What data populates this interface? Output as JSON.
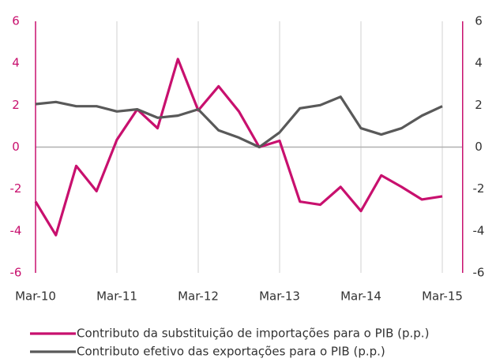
{
  "chart_data": {
    "type": "line",
    "categories": [
      "Mar-10",
      null,
      null,
      null,
      "Mar-11",
      null,
      null,
      null,
      "Mar-12",
      null,
      null,
      null,
      "Mar-13",
      null,
      null,
      null,
      "Mar-14",
      null,
      null,
      null,
      "Mar-15"
    ],
    "series": [
      {
        "name": "Contributo da substituição de importações para o PIB (p.p.)",
        "color": "#c8106e",
        "values": [
          -2.6,
          -4.2,
          -0.9,
          -2.1,
          0.35,
          1.8,
          0.9,
          4.2,
          1.75,
          2.9,
          1.7,
          0,
          0.3,
          -2.6,
          -2.75,
          -1.9,
          -3.05,
          -1.35,
          -1.9,
          -2.5,
          -2.35
        ]
      },
      {
        "name": "Contributo efetivo das exportações para o PIB (p.p.)",
        "color": "#595959",
        "values": [
          2.05,
          2.15,
          1.95,
          1.95,
          1.7,
          1.8,
          1.4,
          1.5,
          1.8,
          0.8,
          0.45,
          0,
          0.7,
          1.85,
          2.0,
          2.4,
          0.9,
          0.6,
          0.9,
          1.5,
          1.95
        ]
      }
    ],
    "ylim": [
      -6,
      6
    ],
    "yticks": [
      -6,
      -4,
      -2,
      0,
      2,
      4,
      6
    ],
    "y2lim": [
      -6,
      6
    ],
    "y2ticks": [
      -6,
      -4,
      -2,
      0,
      2,
      4,
      6
    ],
    "axis_color": "#c8106e",
    "grid": true
  }
}
